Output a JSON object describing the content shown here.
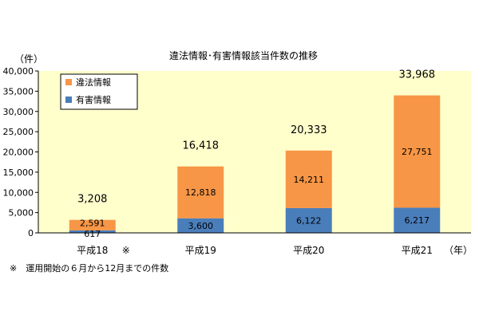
{
  "chart_data": {
    "type": "bar",
    "stacked": true,
    "title": "違法情報･有害情報該当件数の推移",
    "ylabel": "（件）",
    "xunit": "（年）",
    "ylim": [
      0,
      40000
    ],
    "yticks": [
      "0",
      "5,000",
      "10,000",
      "15,000",
      "20,000",
      "25,000",
      "30,000",
      "35,000",
      "40,000"
    ],
    "categories": [
      "平成18",
      "平成19",
      "平成20",
      "平成21"
    ],
    "category_marks": [
      "※",
      "",
      "",
      ""
    ],
    "series": [
      {
        "name": "有害情報",
        "color": "#4a7ebb",
        "values": [
          617,
          3600,
          6122,
          6217
        ],
        "labels": [
          "617",
          "3,600",
          "6,122",
          "6,217"
        ]
      },
      {
        "name": "違法情報",
        "color": "#f79646",
        "values": [
          2591,
          12818,
          14211,
          27751
        ],
        "labels": [
          "2,591",
          "12,818",
          "14,211",
          "27,751"
        ]
      }
    ],
    "totals": [
      3208,
      16418,
      20333,
      33968
    ],
    "total_labels": [
      "3,208",
      "16,418",
      "20,333",
      "33,968"
    ],
    "legend_order": [
      "違法情報",
      "有害情報"
    ],
    "legend_position": "top-left",
    "plot_background": "#ffffcc",
    "grid": false
  },
  "footnote": "※　運用開始の６月から12月までの件数"
}
